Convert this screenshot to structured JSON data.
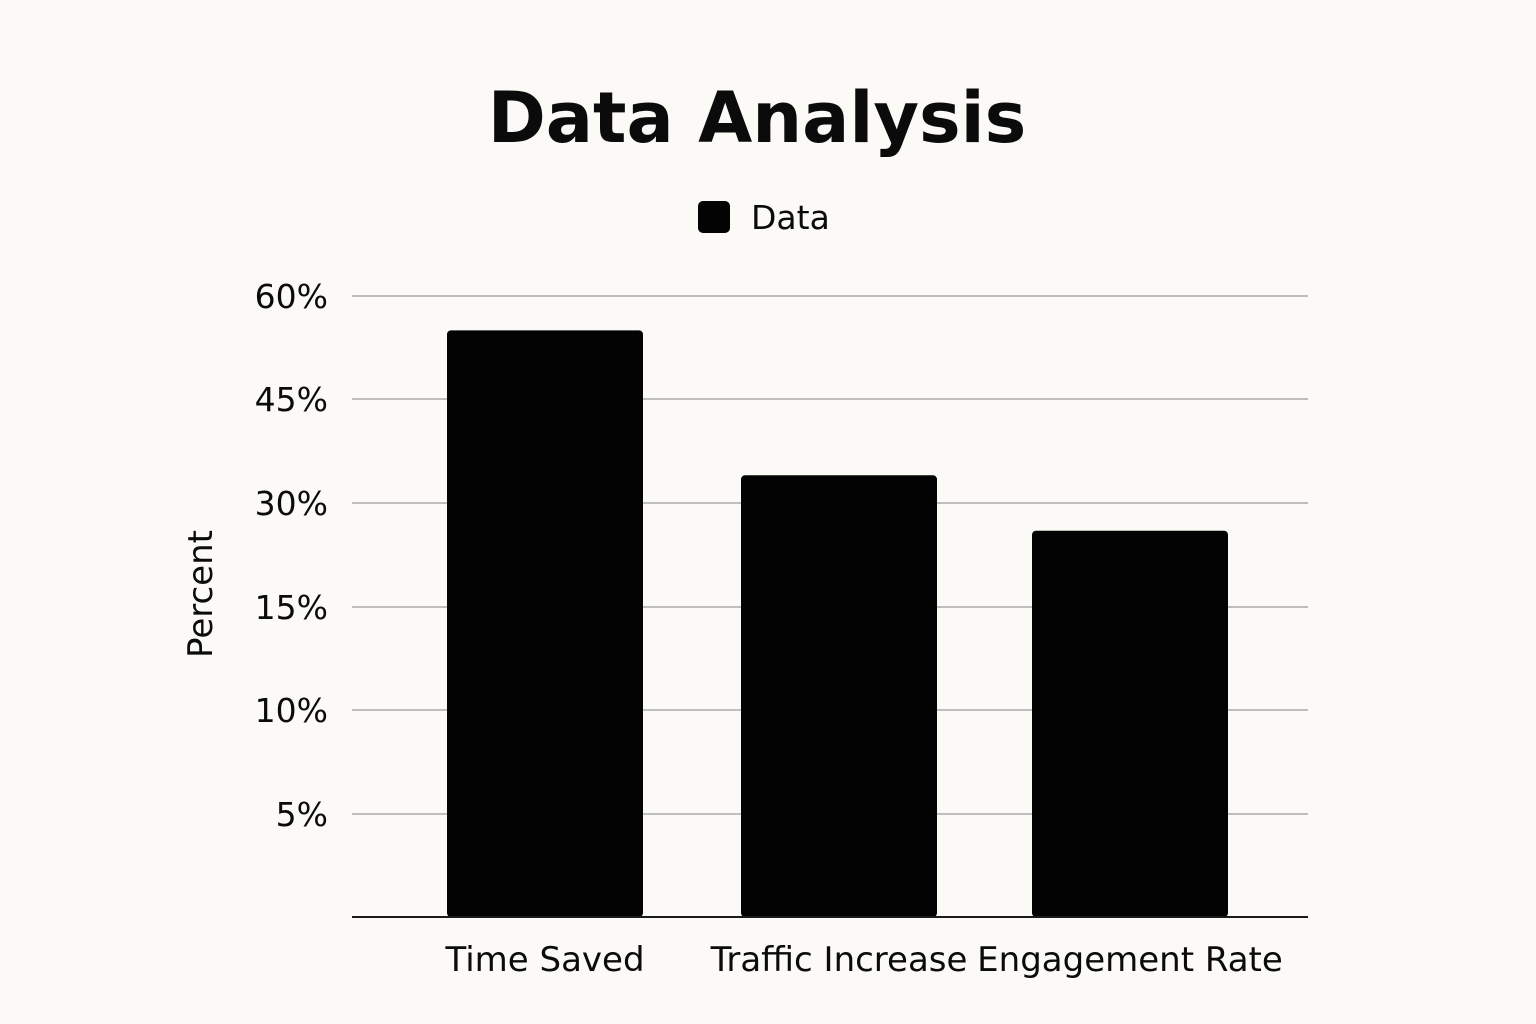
{
  "chart_data": {
    "type": "bar",
    "title": "Data Analysis",
    "legend": {
      "entries": [
        "Data"
      ],
      "placement": "top-center"
    },
    "xlabel": "",
    "ylabel": "Percent",
    "categories": [
      "Time Saved",
      "Traffic Increase",
      "Engagement Rate"
    ],
    "series": [
      {
        "name": "Data",
        "values": [
          55,
          34,
          26
        ],
        "color": "#030303"
      }
    ],
    "y_ticks": [
      {
        "label": "5%"
      },
      {
        "label": "10%"
      },
      {
        "label": "15%"
      },
      {
        "label": "30%"
      },
      {
        "label": "45%"
      },
      {
        "label": "60%"
      }
    ],
    "ylim": [
      0,
      60
    ],
    "grid": true
  }
}
